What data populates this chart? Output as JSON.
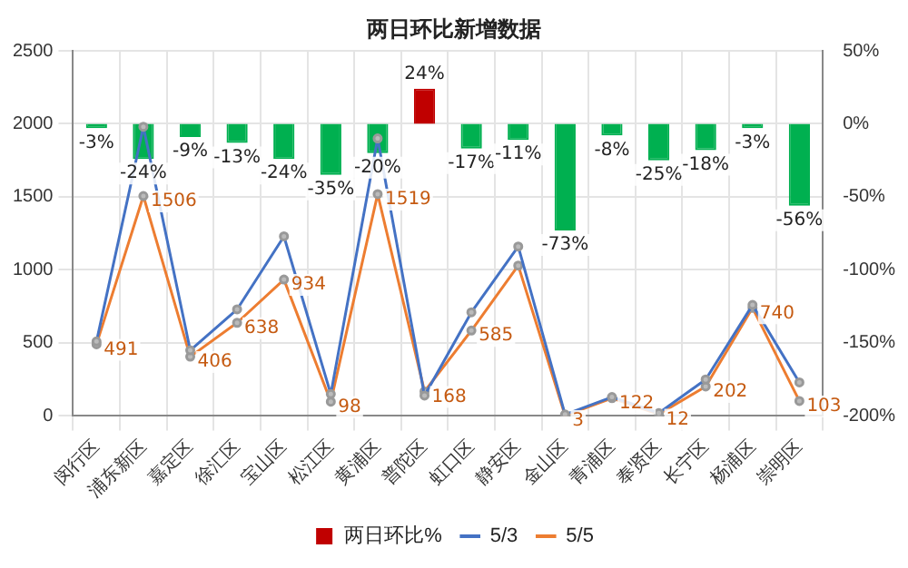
{
  "chart_data": {
    "type": "bar",
    "title": "两日环比新增数据",
    "categories": [
      "闵行区",
      "浦东新区",
      "嘉定区",
      "徐汇区",
      "宝山区",
      "松江区",
      "黄浦区",
      "普陀区",
      "虹口区",
      "静安区",
      "金山区",
      "青浦区",
      "奉贤区",
      "长宁区",
      "杨浦区",
      "崇明区"
    ],
    "series": [
      {
        "name": "两日环比%",
        "axis": "y2",
        "color": "#00b050",
        "colors": [
          "#00b050",
          "#00b050",
          "#00b050",
          "#00b050",
          "#00b050",
          "#00b050",
          "#00b050",
          "#c00000",
          "#00b050",
          "#00b050",
          "#00b050",
          "#00b050",
          "#00b050",
          "#00b050",
          "#00b050",
          "#00b050"
        ],
        "values": [
          -3,
          -24,
          -9,
          -13,
          -24,
          -35,
          -20,
          24,
          -17,
          -11,
          -73,
          -8,
          -25,
          -18,
          -3,
          -56
        ],
        "value_labels": [
          "-3%",
          "-24%",
          "-9%",
          "-13%",
          "-24%",
          "-35%",
          "-20%",
          "24%",
          "-17%",
          "-11%",
          "-73%",
          "-8%",
          "-25%",
          "-18%",
          "-3%",
          "-56%"
        ]
      },
      {
        "name": "5/3",
        "type": "line",
        "color": "#4472c4",
        "values": [
          510,
          1980,
          450,
          730,
          1230,
          150,
          1900,
          140,
          710,
          1160,
          10,
          130,
          20,
          250,
          760,
          230
        ]
      },
      {
        "name": "5/5",
        "type": "line",
        "color": "#ed7d31",
        "values": [
          491,
          1506,
          406,
          638,
          934,
          98,
          1519,
          168,
          585,
          1030,
          3,
          122,
          12,
          202,
          740,
          103
        ],
        "value_labels": [
          "491",
          "1506",
          "406",
          "638",
          "934",
          "98",
          "1519",
          "168",
          "585",
          null,
          "3",
          "122",
          "12",
          "202",
          "740",
          "103"
        ]
      }
    ],
    "ylim": [
      0,
      2500
    ],
    "yticks": [
      0,
      500,
      1000,
      1500,
      2000,
      2500
    ],
    "y2lim": [
      -200,
      50
    ],
    "y2ticks": [
      {
        "value": -200,
        "label": "-200%"
      },
      {
        "value": -150,
        "label": "-150%"
      },
      {
        "value": -100,
        "label": "-100%"
      },
      {
        "value": -50,
        "label": "-50%"
      },
      {
        "value": 0,
        "label": "0%"
      },
      {
        "value": 50,
        "label": "50%"
      }
    ],
    "grid": true,
    "legend": "bottom",
    "marker": "circle",
    "line_style": "solid"
  }
}
